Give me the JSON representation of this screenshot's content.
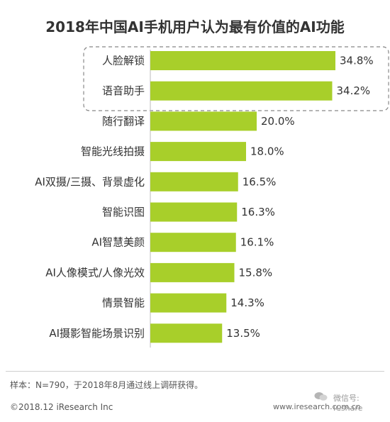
{
  "chart_data": {
    "type": "bar",
    "orientation": "horizontal",
    "title": "2018年中国AI手机用户认为最有价值的AI功能",
    "categories": [
      "人脸解锁",
      "语音助手",
      "随行翻译",
      "智能光线拍摄",
      "AI双摄/三摄、背景虚化",
      "智能识图",
      "AI智慧美颜",
      "AI人像模式/人像光效",
      "情景智能",
      "AI摄影智能场景识别"
    ],
    "values": [
      34.8,
      34.2,
      20.0,
      18.0,
      16.5,
      16.3,
      16.1,
      15.8,
      14.3,
      13.5
    ],
    "value_labels": [
      "34.8%",
      "34.2%",
      "20.0%",
      "18.0%",
      "16.5%",
      "16.3%",
      "16.1%",
      "15.8%",
      "14.3%",
      "13.5%"
    ],
    "highlighted_categories": [
      "人脸解锁",
      "语音助手"
    ],
    "bar_color": "#a8cf2a",
    "highlight_box_color": "#888888",
    "xlim": [
      0,
      40
    ],
    "grid": false
  },
  "footer": {
    "note": "样本：N=790，于2018年8月通过线上调研获得。",
    "copyright": "©2018.12 iResearch Inc",
    "site": "www.iresearch.com.cn",
    "wechat": "微信号: ICshare"
  }
}
